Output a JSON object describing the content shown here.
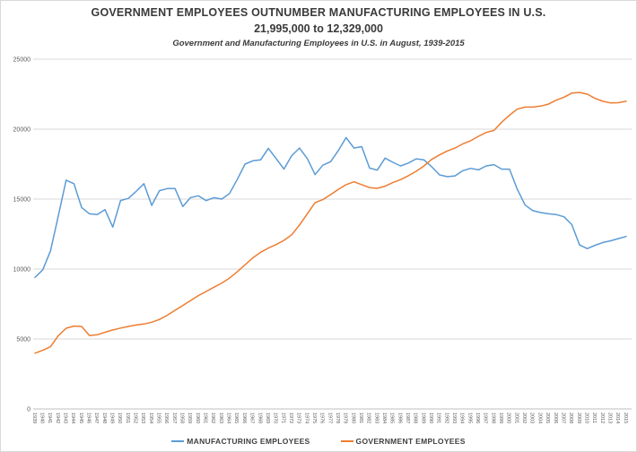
{
  "header": {
    "title": "GOVERNMENT EMPLOYEES OUTNUMBER MANUFACTURING EMPLOYEES IN U.S.",
    "subtitle": "21,995,000 to 12,329,000",
    "caption": "Government and Manufacturing Employees in U.S. in August, 1939-2015"
  },
  "colors": {
    "manufacturing_line": "#5B9BD5",
    "government_line": "#ED7D31",
    "gridline": "#D9D9D9",
    "axis_line": "#BFBFBF",
    "tick_text": "#595959",
    "title_text": "#3A3A3A"
  },
  "chart_data": {
    "type": "line",
    "title": "GOVERNMENT EMPLOYEES OUTNUMBER MANUFACTURING EMPLOYEES IN U.S.",
    "subtitle": "21,995,000 to 12,329,000",
    "caption": "Government and Manufacturing Employees in U.S. in August, 1939-2015",
    "xlabel": "",
    "ylabel": "",
    "ylim": [
      0,
      25000
    ],
    "yticks": [
      0,
      5000,
      10000,
      15000,
      20000,
      25000
    ],
    "grid": true,
    "legend_position": "bottom",
    "x": [
      1939,
      1940,
      1941,
      1942,
      1943,
      1944,
      1945,
      1946,
      1947,
      1948,
      1949,
      1950,
      1951,
      1952,
      1953,
      1954,
      1955,
      1956,
      1957,
      1958,
      1959,
      1960,
      1961,
      1962,
      1963,
      1964,
      1965,
      1966,
      1967,
      1968,
      1969,
      1970,
      1971,
      1972,
      1973,
      1974,
      1975,
      1976,
      1977,
      1978,
      1979,
      1980,
      1981,
      1982,
      1983,
      1984,
      1985,
      1986,
      1987,
      1988,
      1989,
      1990,
      1991,
      1992,
      1993,
      1994,
      1995,
      1996,
      1997,
      1998,
      1999,
      2000,
      2001,
      2002,
      2003,
      2004,
      2005,
      2006,
      2007,
      2008,
      2009,
      2010,
      2011,
      2012,
      2013,
      2014,
      2015
    ],
    "series": [
      {
        "name": "MANUFACTURING EMPLOYEES",
        "color": "#5B9BD5",
        "values": [
          9400,
          9950,
          11300,
          13800,
          16350,
          16100,
          14400,
          13950,
          13900,
          14250,
          13000,
          14900,
          15050,
          15550,
          16100,
          14550,
          15600,
          15750,
          15750,
          14470,
          15110,
          15240,
          14890,
          15100,
          15000,
          15400,
          16400,
          17500,
          17740,
          17800,
          18630,
          17900,
          17150,
          18100,
          18650,
          17900,
          16750,
          17420,
          17670,
          18480,
          19400,
          18650,
          18750,
          17220,
          17070,
          17930,
          17630,
          17370,
          17580,
          17880,
          17800,
          17310,
          16730,
          16600,
          16660,
          17030,
          17200,
          17090,
          17370,
          17460,
          17140,
          17140,
          15700,
          14570,
          14170,
          14040,
          13950,
          13890,
          13740,
          13180,
          11720,
          11460,
          11700,
          11900,
          12020,
          12180,
          12329
        ]
      },
      {
        "name": "GOVERNMENT EMPLOYEES",
        "color": "#ED7D31",
        "values": [
          3990,
          4190,
          4450,
          5240,
          5770,
          5920,
          5900,
          5250,
          5300,
          5480,
          5650,
          5780,
          5900,
          6000,
          6070,
          6200,
          6400,
          6700,
          7050,
          7400,
          7750,
          8100,
          8400,
          8700,
          9000,
          9350,
          9800,
          10300,
          10800,
          11200,
          11500,
          11750,
          12050,
          12450,
          13150,
          13950,
          14750,
          14960,
          15320,
          15700,
          16030,
          16240,
          16030,
          15820,
          15770,
          15920,
          16180,
          16390,
          16670,
          16990,
          17370,
          17840,
          18160,
          18440,
          18650,
          18950,
          19170,
          19490,
          19760,
          19910,
          20500,
          21000,
          21430,
          21580,
          21580,
          21650,
          21790,
          22070,
          22280,
          22580,
          22620,
          22500,
          22200,
          21990,
          21870,
          21890,
          21995
        ]
      }
    ]
  },
  "legend": {
    "items": [
      {
        "label": "MANUFACTURING EMPLOYEES"
      },
      {
        "label": "GOVERNMENT EMPLOYEES"
      }
    ]
  }
}
